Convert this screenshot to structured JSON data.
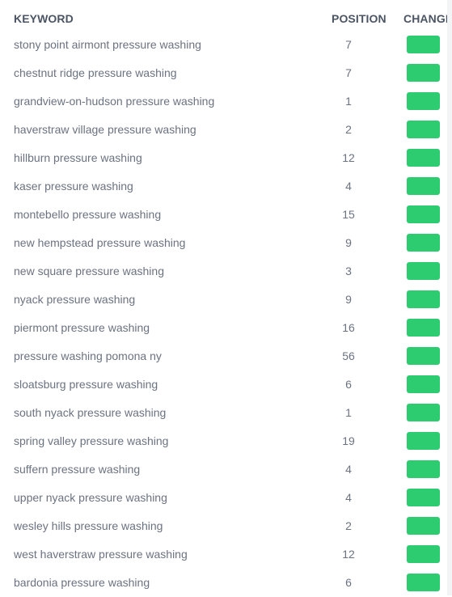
{
  "colors": {
    "change_badge": "#2ecc71",
    "header_text": "#4b5563",
    "row_text": "#6b7280"
  },
  "table": {
    "headers": {
      "keyword": "KEYWORD",
      "position": "POSITION",
      "change": "CHANGE"
    },
    "rows": [
      {
        "keyword": "stony point airmont pressure washing",
        "position": "7"
      },
      {
        "keyword": "chestnut ridge pressure washing",
        "position": "7"
      },
      {
        "keyword": "grandview-on-hudson pressure washing",
        "position": "1"
      },
      {
        "keyword": "haverstraw village pressure washing",
        "position": "2"
      },
      {
        "keyword": "hillburn pressure washing",
        "position": "12"
      },
      {
        "keyword": "kaser pressure washing",
        "position": "4"
      },
      {
        "keyword": "montebello pressure washing",
        "position": "15"
      },
      {
        "keyword": "new hempstead pressure washing",
        "position": "9"
      },
      {
        "keyword": "new square pressure washing",
        "position": "3"
      },
      {
        "keyword": "nyack pressure washing",
        "position": "9"
      },
      {
        "keyword": "piermont pressure washing",
        "position": "16"
      },
      {
        "keyword": "pressure washing pomona ny",
        "position": "56"
      },
      {
        "keyword": "sloatsburg pressure washing",
        "position": "6"
      },
      {
        "keyword": "south nyack pressure washing",
        "position": "1"
      },
      {
        "keyword": "spring valley pressure washing",
        "position": "19"
      },
      {
        "keyword": "suffern pressure washing",
        "position": "4"
      },
      {
        "keyword": "upper nyack pressure washing",
        "position": "4"
      },
      {
        "keyword": "wesley hills pressure washing",
        "position": "2"
      },
      {
        "keyword": "west haverstraw pressure washing",
        "position": "12"
      },
      {
        "keyword": "bardonia pressure washing",
        "position": "6"
      }
    ]
  }
}
